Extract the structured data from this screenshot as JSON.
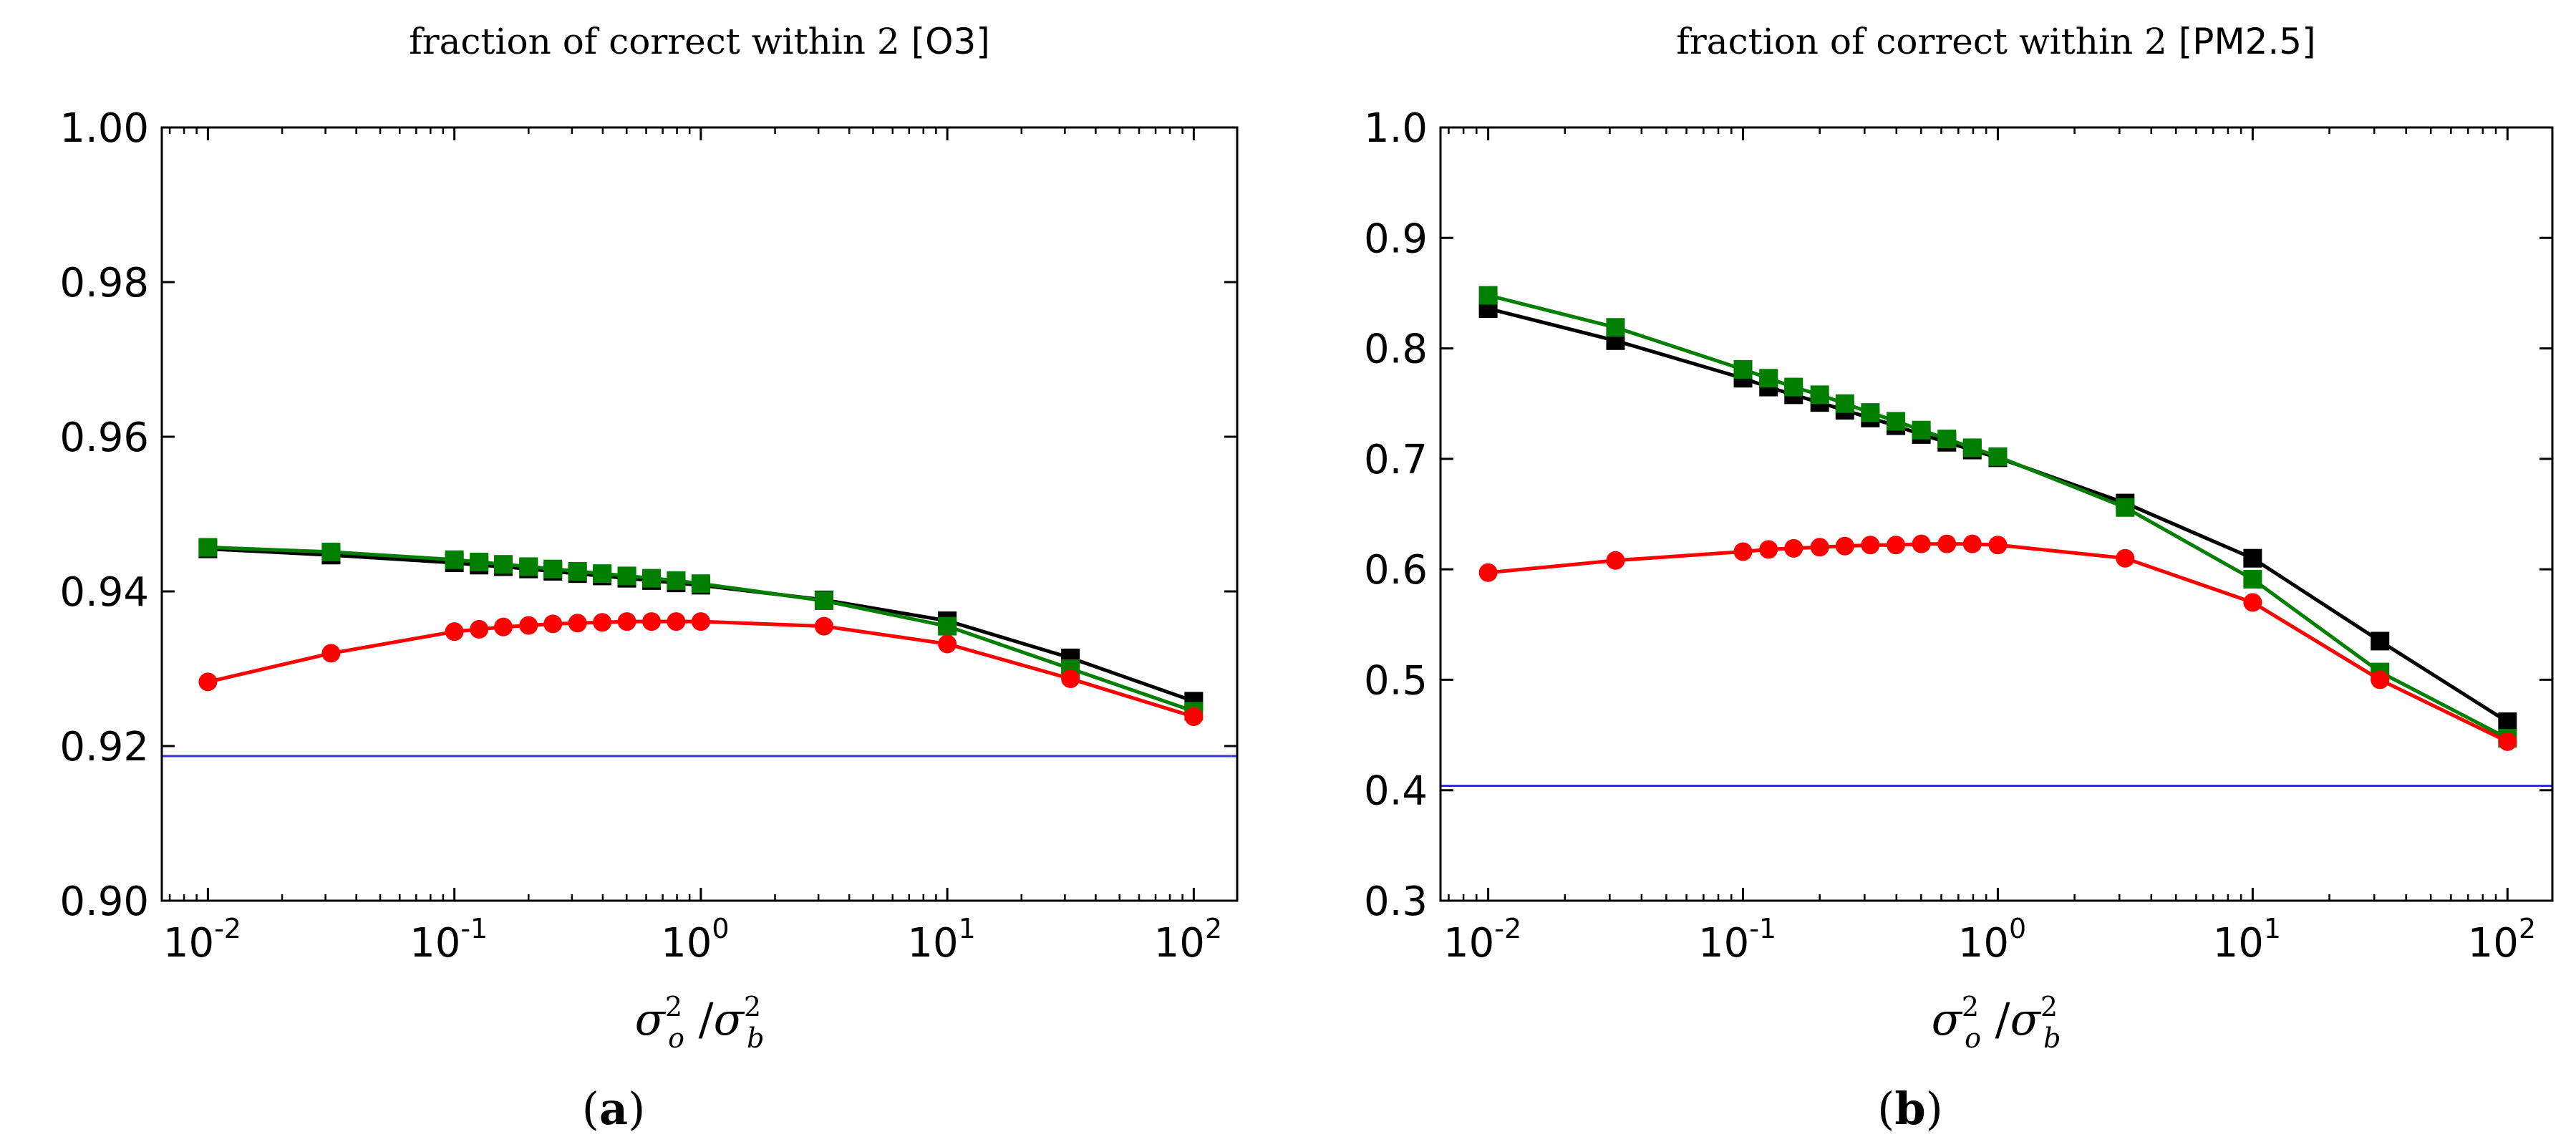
{
  "chart_data": [
    {
      "type": "line",
      "panel_label": "a",
      "title_main": "fraction of correct within 2",
      "title_species": "[O3]",
      "xlabel_num": "σ",
      "xlabel_num_sub": "o",
      "xlabel_den": "σ",
      "xlabel_den_sub": "b",
      "xlabel_sup": "2",
      "xlabel_sep": "/",
      "xscale": "log",
      "xlim": [
        0.0065,
        150
      ],
      "ylim": [
        0.9,
        1.0
      ],
      "yticks": [
        0.9,
        0.92,
        0.94,
        0.96,
        0.98,
        1.0
      ],
      "ytick_labels": [
        "0.90",
        "0.92",
        "0.94",
        "0.96",
        "0.98",
        "1.00"
      ],
      "xticks": [
        0.01,
        0.1,
        1,
        10,
        100
      ],
      "xtick_base": "10",
      "xtick_exps": [
        "-2",
        "-1",
        "0",
        "1",
        "2"
      ],
      "reference_line": {
        "value": 0.9187,
        "color": "#3333cc"
      },
      "series": [
        {
          "name": "black",
          "color": "#000000",
          "marker": "square",
          "x": [
            0.01,
            0.0316,
            0.1,
            0.126,
            0.158,
            0.2,
            0.251,
            0.316,
            0.398,
            0.501,
            0.631,
            0.794,
            1.0,
            3.16,
            10,
            31.6,
            100
          ],
          "values": [
            0.9455,
            0.9447,
            0.9437,
            0.9434,
            0.9432,
            0.9429,
            0.9426,
            0.9423,
            0.942,
            0.9417,
            0.9414,
            0.9411,
            0.9408,
            0.9389,
            0.9362,
            0.9314,
            0.9258
          ]
        },
        {
          "name": "green",
          "color": "#007f00",
          "marker": "square",
          "x": [
            0.01,
            0.0316,
            0.1,
            0.126,
            0.158,
            0.2,
            0.251,
            0.316,
            0.398,
            0.501,
            0.631,
            0.794,
            1.0,
            3.16,
            10,
            31.6,
            100
          ],
          "values": [
            0.9457,
            0.9451,
            0.9441,
            0.9438,
            0.9435,
            0.9432,
            0.9429,
            0.9426,
            0.9423,
            0.942,
            0.9417,
            0.9414,
            0.941,
            0.9388,
            0.9355,
            0.93,
            0.9245
          ]
        },
        {
          "name": "red",
          "color": "#ff0000",
          "marker": "circle",
          "x": [
            0.01,
            0.0316,
            0.1,
            0.126,
            0.158,
            0.2,
            0.251,
            0.316,
            0.398,
            0.501,
            0.631,
            0.794,
            1.0,
            3.16,
            10,
            31.6,
            100
          ],
          "values": [
            0.9283,
            0.932,
            0.9348,
            0.9351,
            0.9354,
            0.9356,
            0.9358,
            0.9359,
            0.936,
            0.9361,
            0.9361,
            0.9361,
            0.9361,
            0.9355,
            0.9332,
            0.9287,
            0.9238
          ]
        }
      ]
    },
    {
      "type": "line",
      "panel_label": "b",
      "title_main": "fraction of correct within 2",
      "title_species": "[PM2.5]",
      "xlabel_num": "σ",
      "xlabel_num_sub": "o",
      "xlabel_den": "σ",
      "xlabel_den_sub": "b",
      "xlabel_sup": "2",
      "xlabel_sep": "/",
      "xscale": "log",
      "xlim": [
        0.0065,
        150
      ],
      "ylim": [
        0.3,
        1.0
      ],
      "yticks": [
        0.3,
        0.4,
        0.5,
        0.6,
        0.7,
        0.8,
        0.9,
        1.0
      ],
      "ytick_labels": [
        "0.3",
        "0.4",
        "0.5",
        "0.6",
        "0.7",
        "0.8",
        "0.9",
        "1.0"
      ],
      "xticks": [
        0.01,
        0.1,
        1,
        10,
        100
      ],
      "xtick_base": "10",
      "xtick_exps": [
        "-2",
        "-1",
        "0",
        "1",
        "2"
      ],
      "reference_line": {
        "value": 0.404,
        "color": "#3333cc"
      },
      "series": [
        {
          "name": "black",
          "color": "#000000",
          "marker": "square",
          "x": [
            0.01,
            0.0316,
            0.1,
            0.126,
            0.158,
            0.2,
            0.251,
            0.316,
            0.398,
            0.501,
            0.631,
            0.794,
            1.0,
            3.16,
            10,
            31.6,
            100
          ],
          "values": [
            0.836,
            0.807,
            0.773,
            0.765,
            0.758,
            0.751,
            0.744,
            0.737,
            0.73,
            0.722,
            0.715,
            0.708,
            0.701,
            0.66,
            0.61,
            0.535,
            0.462
          ]
        },
        {
          "name": "green",
          "color": "#007f00",
          "marker": "square",
          "x": [
            0.01,
            0.0316,
            0.1,
            0.126,
            0.158,
            0.2,
            0.251,
            0.316,
            0.398,
            0.501,
            0.631,
            0.794,
            1.0,
            3.16,
            10,
            31.6,
            100
          ],
          "values": [
            0.848,
            0.819,
            0.781,
            0.773,
            0.765,
            0.758,
            0.75,
            0.742,
            0.734,
            0.726,
            0.718,
            0.71,
            0.702,
            0.656,
            0.591,
            0.507,
            0.447
          ]
        },
        {
          "name": "red",
          "color": "#ff0000",
          "marker": "circle",
          "x": [
            0.01,
            0.0316,
            0.1,
            0.126,
            0.158,
            0.2,
            0.251,
            0.316,
            0.398,
            0.501,
            0.631,
            0.794,
            1.0,
            3.16,
            10,
            31.6,
            100
          ],
          "values": [
            0.597,
            0.608,
            0.616,
            0.618,
            0.619,
            0.62,
            0.621,
            0.622,
            0.622,
            0.623,
            0.623,
            0.623,
            0.622,
            0.61,
            0.57,
            0.5,
            0.444
          ]
        }
      ]
    }
  ]
}
